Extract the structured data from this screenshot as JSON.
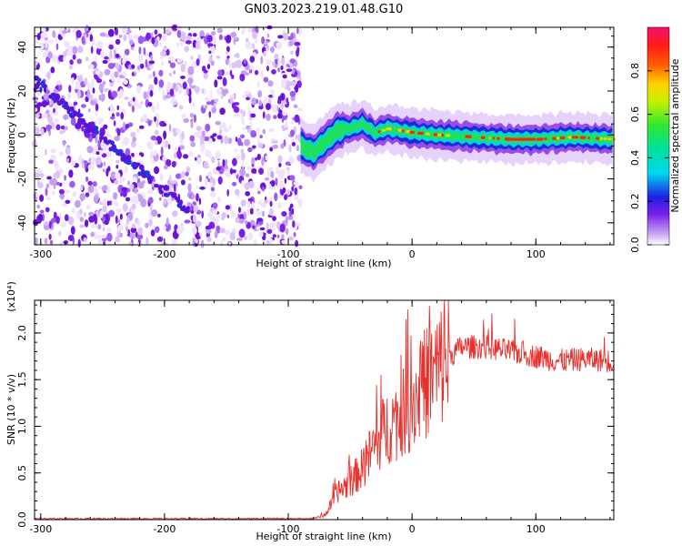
{
  "title": "GN03.2023.219.01.48.G10",
  "colors": {
    "snr_line": "#e8302c",
    "spectrogram_noise": "#7a1fe8",
    "axes": "#000000"
  },
  "chart_data": [
    {
      "type": "heatmap",
      "xlabel": "Height of straight line (km)",
      "ylabel": "Frequency (Hz)",
      "xlim": [
        -305,
        163
      ],
      "ylim": [
        -50,
        49
      ],
      "x_ticks": [
        -300,
        -200,
        -100,
        0,
        100
      ],
      "y_ticks": [
        -40,
        -20,
        0,
        20,
        40
      ],
      "colorbar": {
        "label": "Normalized spectral amplitude",
        "range": [
          0,
          1
        ],
        "ticks": [
          0.0,
          0.2,
          0.4,
          0.6,
          0.8
        ],
        "colormap": "rainbow (magenta → blue → cyan → green → yellow → red → pink)"
      },
      "features": {
        "noise_region_x": [
          -305,
          -90
        ],
        "descending_streak": {
          "x": [
            -305,
            -180
          ],
          "y": [
            25,
            -35
          ]
        },
        "signal_track": {
          "x": [
            -90,
            -80,
            -70,
            -60,
            -50,
            -40,
            -30,
            -20,
            -10,
            0,
            20,
            50,
            80,
            100,
            130,
            163
          ],
          "y": [
            -5,
            -8,
            -3,
            2,
            3,
            5,
            1,
            3,
            2,
            1,
            0,
            -1,
            -2,
            -2,
            -1,
            -2
          ]
        }
      }
    },
    {
      "type": "line",
      "xlabel": "Height of straight line (km)",
      "ylabel": "SNR (10 * v/v)",
      "y_multiplier": "(x10⁴)",
      "xlim": [
        -305,
        163
      ],
      "ylim": [
        0,
        2.35
      ],
      "x_ticks": [
        -300,
        -200,
        -100,
        0,
        100
      ],
      "y_ticks": [
        0.0,
        0.5,
        1.0,
        1.5,
        2.0
      ],
      "series": [
        {
          "x": [
            -305,
            -80,
            -70,
            -60,
            -50,
            -40,
            -30,
            -20,
            -10,
            0,
            10,
            20,
            30,
            40,
            60,
            80,
            100,
            120,
            140,
            163
          ],
          "y": [
            0.01,
            0.01,
            0.05,
            0.3,
            0.4,
            0.55,
            0.8,
            1.0,
            1.1,
            1.25,
            1.45,
            1.6,
            1.75,
            1.85,
            1.85,
            1.8,
            1.75,
            1.7,
            1.72,
            1.7
          ]
        }
      ]
    }
  ]
}
